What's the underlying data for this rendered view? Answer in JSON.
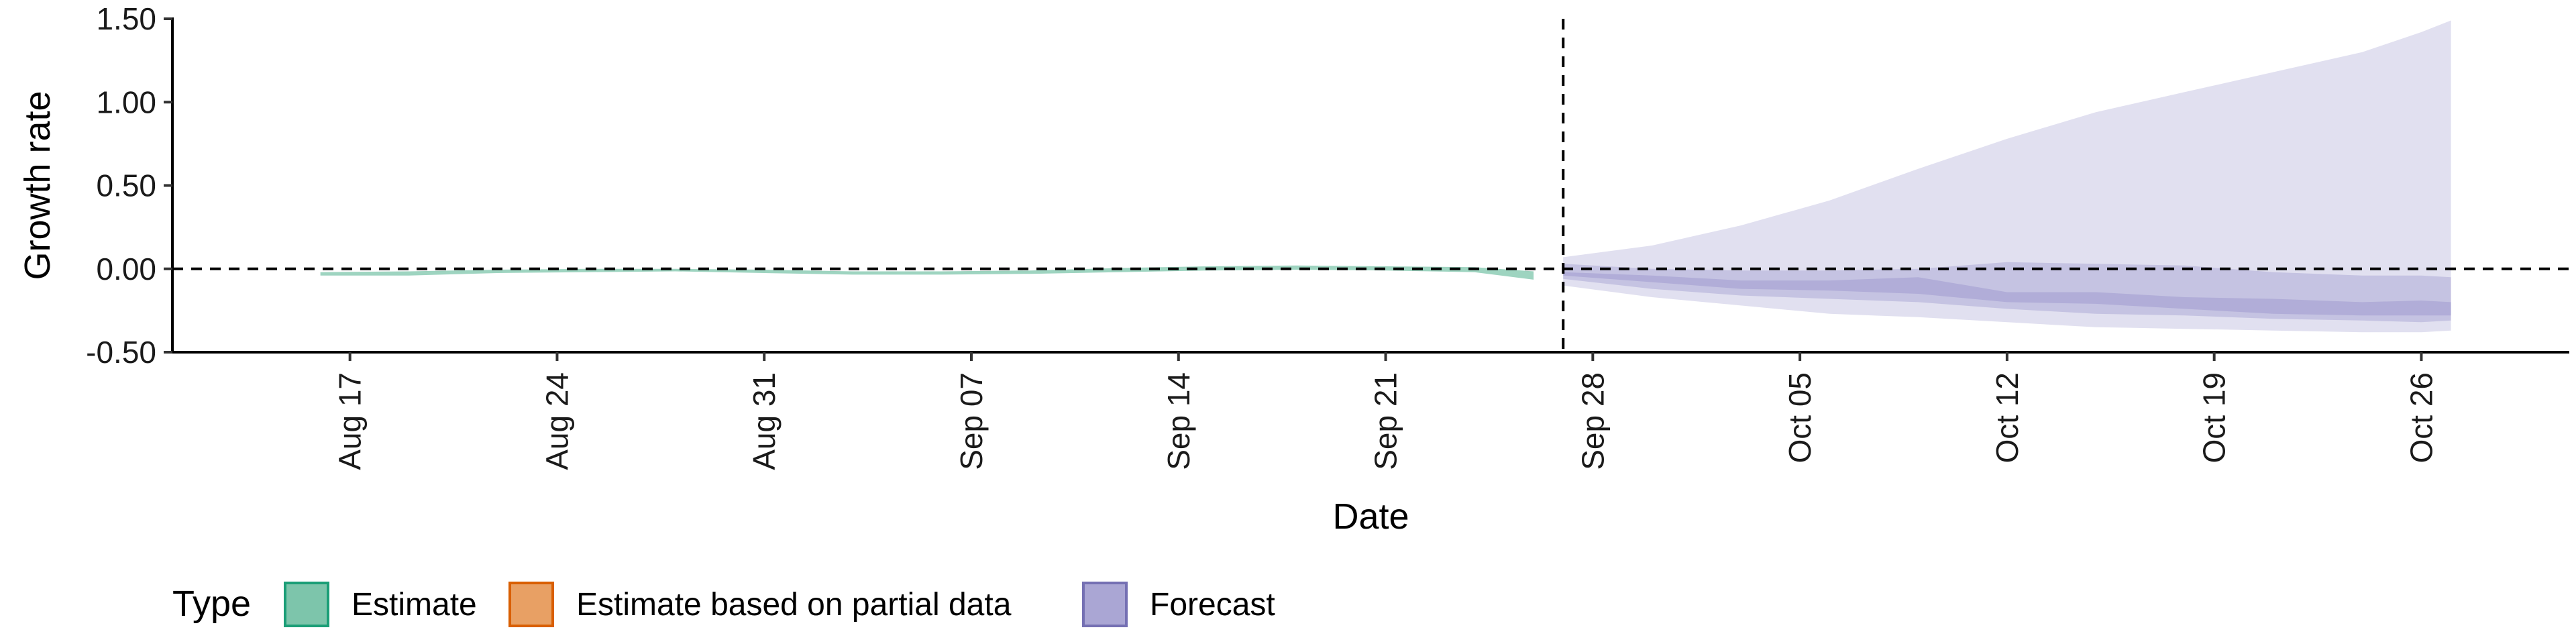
{
  "chart_data": {
    "type": "area",
    "xlabel": "Date",
    "ylabel": "Growth rate",
    "ylim": [
      -0.5,
      1.5
    ],
    "yticks": [
      "-0.50",
      "0.00",
      "0.50",
      "1.00",
      "1.50"
    ],
    "ytick_values": [
      -0.5,
      0.0,
      0.5,
      1.0,
      1.5
    ],
    "xlim": [
      "2020-08-11",
      "2020-10-31"
    ],
    "xticks": [
      "Aug 17",
      "Aug 24",
      "Aug 31",
      "Sep 07",
      "Sep 14",
      "Sep 21",
      "Sep 28",
      "Oct 05",
      "Oct 12",
      "Oct 19",
      "Oct 26"
    ],
    "xtick_dates": [
      "2020-08-17",
      "2020-08-24",
      "2020-08-31",
      "2020-09-07",
      "2020-09-14",
      "2020-09-21",
      "2020-09-28",
      "2020-10-05",
      "2020-10-12",
      "2020-10-19",
      "2020-10-26"
    ],
    "reference_lines": {
      "horizontal_y": 0.0,
      "vertical_date": "2020-09-27"
    },
    "grid": false,
    "legend": {
      "title": "Type",
      "position": "bottom",
      "entries": [
        {
          "label": "Estimate",
          "fill": "#7dc5ab",
          "border": "#1b9e77"
        },
        {
          "label": "Estimate based on partial data",
          "fill": "#e8a064",
          "border": "#d95f02"
        },
        {
          "label": "Forecast",
          "fill": "#aaa6d4",
          "border": "#7570b3"
        }
      ]
    },
    "series": [
      {
        "name": "Estimate",
        "color": "#7dc5ab",
        "dates": [
          "2020-08-16",
          "2020-08-19",
          "2020-08-22",
          "2020-08-25",
          "2020-08-28",
          "2020-08-31",
          "2020-09-03",
          "2020-09-06",
          "2020-09-09",
          "2020-09-12",
          "2020-09-15",
          "2020-09-18",
          "2020-09-21",
          "2020-09-24",
          "2020-09-26"
        ],
        "lower": [
          -0.04,
          -0.04,
          -0.025,
          -0.02,
          -0.015,
          -0.025,
          -0.035,
          -0.035,
          -0.03,
          -0.02,
          -0.01,
          -0.005,
          -0.01,
          -0.02,
          -0.065
        ],
        "upper": [
          -0.02,
          -0.015,
          -0.005,
          0.0,
          0.0,
          -0.005,
          -0.015,
          -0.015,
          -0.01,
          0.005,
          0.015,
          0.02,
          0.015,
          0.01,
          -0.015
        ]
      },
      {
        "name": "Forecast",
        "color": "#aaa6d4",
        "dates": [
          "2020-09-27",
          "2020-09-30",
          "2020-10-03",
          "2020-10-06",
          "2020-10-09",
          "2020-10-12",
          "2020-10-15",
          "2020-10-18",
          "2020-10-21",
          "2020-10-24",
          "2020-10-26",
          "2020-10-27"
        ],
        "outer_lower": [
          -0.1,
          -0.17,
          -0.22,
          -0.27,
          -0.29,
          -0.32,
          -0.35,
          -0.36,
          -0.37,
          -0.38,
          -0.38,
          -0.37
        ],
        "outer_upper": [
          0.07,
          0.14,
          0.26,
          0.41,
          0.6,
          0.78,
          0.94,
          1.06,
          1.18,
          1.3,
          1.42,
          1.49
        ],
        "mid_lower": [
          -0.06,
          -0.12,
          -0.16,
          -0.18,
          -0.2,
          -0.24,
          -0.27,
          -0.28,
          -0.3,
          -0.31,
          -0.32,
          -0.31
        ],
        "mid_upper": [
          0.03,
          0.0,
          -0.01,
          -0.01,
          0.0,
          0.04,
          0.03,
          0.02,
          -0.02,
          -0.04,
          -0.04,
          -0.05
        ],
        "inner_lower": [
          -0.04,
          -0.08,
          -0.12,
          -0.13,
          -0.15,
          -0.2,
          -0.21,
          -0.24,
          -0.27,
          -0.28,
          -0.28,
          -0.28
        ],
        "inner_upper": [
          -0.02,
          -0.04,
          -0.07,
          -0.07,
          -0.05,
          -0.14,
          -0.14,
          -0.17,
          -0.18,
          -0.2,
          -0.19,
          -0.2
        ]
      }
    ]
  }
}
